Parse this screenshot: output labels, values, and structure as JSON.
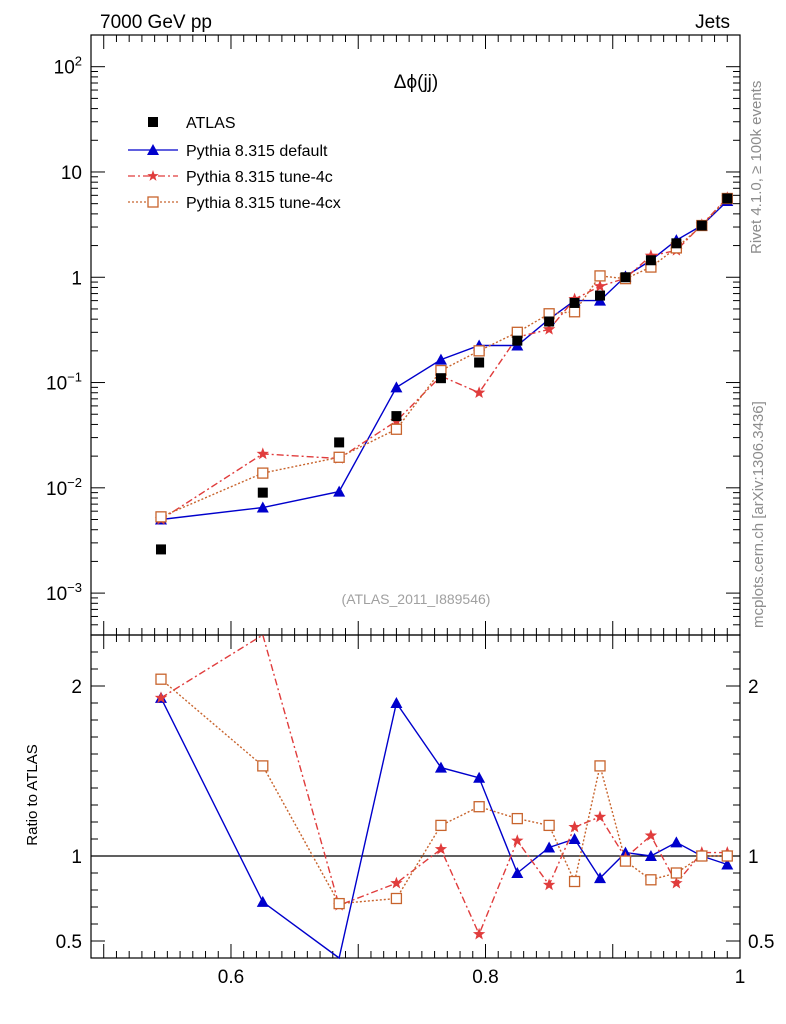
{
  "header": {
    "left": "7000 GeV pp",
    "right": "Jets"
  },
  "side_labels": {
    "rivet": "Rivet 4.1.0, ≥ 100k events",
    "mcplots": "mcplots.cern.ch [arXiv:1306.3436]"
  },
  "analysis_id": "(ATLAS_2011_I889546)",
  "legend_items": [
    "ATLAS",
    "Pythia 8.315 default",
    "Pythia 8.315 tune-4c",
    "Pythia 8.315 tune-4cx"
  ],
  "colors": {
    "data": "#000000",
    "default": "#0000cc",
    "tune4c": "#e03c3c",
    "tune4cx": "#c8642d",
    "side": "#8c8c8c"
  },
  "chart_data": [
    {
      "type": "scatter",
      "title": "Δϕ(jj)",
      "xlabel": "",
      "ylabel": "",
      "yscale": "log",
      "xlim": [
        0.49,
        1.0
      ],
      "ylim": [
        0.0004,
        200
      ],
      "ytick_labels": {
        "major": [
          "10^-3",
          "10^-2",
          "10^-1",
          "1",
          "10",
          "10^2"
        ]
      },
      "series": [
        {
          "name": "ATLAS",
          "x": [
            0.545,
            0.625,
            0.685,
            0.73,
            0.765,
            0.795,
            0.825,
            0.85,
            0.87,
            0.89,
            0.91,
            0.93,
            0.95,
            0.97,
            0.99
          ],
          "y": [
            0.0026,
            0.009,
            0.027,
            0.048,
            0.11,
            0.155,
            0.25,
            0.38,
            0.57,
            0.67,
            1.0,
            1.45,
            2.1,
            3.1,
            5.6
          ]
        },
        {
          "name": "Pythia 8.315 default",
          "x": [
            0.545,
            0.625,
            0.685,
            0.73,
            0.765,
            0.795,
            0.825,
            0.85,
            0.87,
            0.89,
            0.91,
            0.93,
            0.95,
            0.97,
            0.99
          ],
          "y": [
            0.005,
            0.0065,
            0.0092,
            0.09,
            0.165,
            0.225,
            0.225,
            0.4,
            0.6,
            0.6,
            1.02,
            1.45,
            2.25,
            3.1,
            5.3
          ]
        },
        {
          "name": "Pythia 8.315 tune-4c",
          "x": [
            0.545,
            0.625,
            0.685,
            0.73,
            0.765,
            0.795,
            0.825,
            0.85,
            0.87,
            0.89,
            0.91,
            0.93,
            0.95,
            0.97,
            0.99
          ],
          "y": [
            0.005,
            0.021,
            0.019,
            0.043,
            0.115,
            0.08,
            0.27,
            0.32,
            0.62,
            0.82,
            0.98,
            1.6,
            1.8,
            3.15,
            5.7
          ]
        },
        {
          "name": "Pythia 8.315 tune-4cx",
          "x": [
            0.545,
            0.625,
            0.685,
            0.73,
            0.765,
            0.795,
            0.825,
            0.85,
            0.87,
            0.89,
            0.91,
            0.93,
            0.95,
            0.97,
            0.99
          ],
          "y": [
            0.0053,
            0.0138,
            0.0195,
            0.036,
            0.13,
            0.2,
            0.3,
            0.45,
            0.47,
            1.03,
            0.97,
            1.25,
            1.9,
            3.1,
            5.6
          ]
        }
      ]
    },
    {
      "type": "scatter",
      "title": "",
      "xlabel": "",
      "ylabel": "Ratio to ATLAS",
      "xlim": [
        0.49,
        1.0
      ],
      "ylim": [
        0.4,
        2.3
      ],
      "x_tick_labels": [
        "0.6",
        "0.8",
        "1"
      ],
      "y_tick_labels": [
        "0.5",
        "1",
        "2"
      ],
      "reference_line": 1.0,
      "series": [
        {
          "name": "Pythia 8.315 default",
          "x": [
            0.545,
            0.625,
            0.685,
            0.73,
            0.765,
            0.795,
            0.825,
            0.85,
            0.87,
            0.89,
            0.91,
            0.93,
            0.95,
            0.97,
            0.99
          ],
          "y": [
            1.93,
            0.73,
            0.34,
            1.9,
            1.52,
            1.46,
            0.9,
            1.05,
            1.1,
            0.87,
            1.02,
            1.0,
            1.08,
            1.0,
            0.95
          ]
        },
        {
          "name": "Pythia 8.315 tune-4c",
          "x": [
            0.545,
            0.625,
            0.685,
            0.73,
            0.765,
            0.795,
            0.825,
            0.85,
            0.87,
            0.89,
            0.91,
            0.93,
            0.95,
            0.97,
            0.99
          ],
          "y": [
            1.93,
            2.33,
            0.71,
            0.84,
            1.04,
            0.54,
            1.09,
            0.83,
            1.17,
            1.23,
            0.99,
            1.12,
            0.84,
            1.02,
            1.02
          ]
        },
        {
          "name": "Pythia 8.315 tune-4cx",
          "x": [
            0.545,
            0.625,
            0.685,
            0.73,
            0.765,
            0.795,
            0.825,
            0.85,
            0.87,
            0.89,
            0.91,
            0.93,
            0.95,
            0.97,
            0.99
          ],
          "y": [
            2.04,
            1.53,
            0.72,
            0.75,
            1.18,
            1.29,
            1.22,
            1.18,
            0.85,
            1.53,
            0.97,
            0.86,
            0.9,
            1.0,
            1.0
          ]
        }
      ]
    }
  ]
}
